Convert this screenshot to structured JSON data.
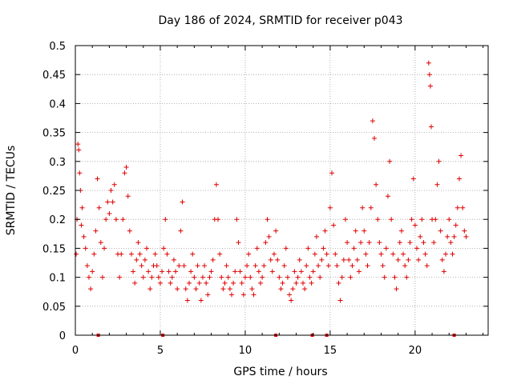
{
  "chart_data": {
    "type": "scatter",
    "title": "Day 186 of 2024, SRMTID for receiver p043",
    "xlabel": "GPS time / hours",
    "ylabel": "SRMTID / TECUs",
    "xlim": [
      0,
      24.3
    ],
    "ylim": [
      0,
      0.5
    ],
    "x_ticks": [
      0,
      5,
      10,
      15,
      20
    ],
    "y_ticks": [
      0,
      0.05,
      0.1,
      0.15,
      0.2,
      0.25,
      0.3,
      0.35,
      0.4,
      0.45,
      0.5
    ],
    "x_tick_labels": [
      "0",
      "5",
      "10",
      "15",
      "20"
    ],
    "y_tick_labels": [
      "0",
      "0.05",
      "0.1",
      "0.15",
      "0.2",
      "0.25",
      "0.3",
      "0.35",
      "0.4",
      "0.45",
      "0.5"
    ],
    "grid": true,
    "marker": "+",
    "marker_color": "#e00000",
    "series": [
      {
        "name": "SRMTID",
        "points": [
          [
            0.05,
            0.14
          ],
          [
            0.1,
            0.2
          ],
          [
            0.15,
            0.33
          ],
          [
            0.2,
            0.32
          ],
          [
            0.25,
            0.28
          ],
          [
            0.3,
            0.25
          ],
          [
            0.35,
            0.19
          ],
          [
            0.4,
            0.22
          ],
          [
            0.5,
            0.17
          ],
          [
            0.6,
            0.15
          ],
          [
            0.7,
            0.12
          ],
          [
            0.8,
            0.1
          ],
          [
            0.9,
            0.08
          ],
          [
            1.0,
            0.11
          ],
          [
            1.1,
            0.14
          ],
          [
            1.2,
            0.18
          ],
          [
            1.3,
            0.27
          ],
          [
            1.4,
            0.22
          ],
          [
            1.5,
            0.16
          ],
          [
            1.6,
            0.1
          ],
          [
            1.7,
            0.15
          ],
          [
            1.8,
            0.2
          ],
          [
            1.9,
            0.23
          ],
          [
            2.0,
            0.21
          ],
          [
            2.1,
            0.25
          ],
          [
            2.2,
            0.23
          ],
          [
            2.3,
            0.26
          ],
          [
            2.4,
            0.2
          ],
          [
            2.5,
            0.14
          ],
          [
            2.6,
            0.1
          ],
          [
            2.7,
            0.14
          ],
          [
            2.8,
            0.2
          ],
          [
            2.9,
            0.28
          ],
          [
            3.0,
            0.29
          ],
          [
            3.1,
            0.24
          ],
          [
            3.2,
            0.18
          ],
          [
            3.3,
            0.14
          ],
          [
            3.4,
            0.11
          ],
          [
            3.5,
            0.09
          ],
          [
            3.6,
            0.13
          ],
          [
            3.7,
            0.16
          ],
          [
            3.8,
            0.14
          ],
          [
            3.9,
            0.12
          ],
          [
            4.0,
            0.1
          ],
          [
            4.1,
            0.13
          ],
          [
            4.2,
            0.15
          ],
          [
            4.3,
            0.11
          ],
          [
            4.4,
            0.08
          ],
          [
            4.5,
            0.1
          ],
          [
            4.6,
            0.12
          ],
          [
            4.7,
            0.14
          ],
          [
            4.8,
            0.12
          ],
          [
            4.9,
            0.1
          ],
          [
            5.0,
            0.09
          ],
          [
            5.1,
            0.11
          ],
          [
            5.2,
            0.15
          ],
          [
            5.3,
            0.2
          ],
          [
            5.4,
            0.14
          ],
          [
            5.5,
            0.11
          ],
          [
            5.6,
            0.09
          ],
          [
            5.7,
            0.1
          ],
          [
            5.8,
            0.13
          ],
          [
            5.9,
            0.11
          ],
          [
            6.0,
            0.08
          ],
          [
            6.1,
            0.12
          ],
          [
            6.2,
            0.18
          ],
          [
            6.3,
            0.23
          ],
          [
            6.4,
            0.12
          ],
          [
            6.5,
            0.08
          ],
          [
            6.6,
            0.06
          ],
          [
            6.7,
            0.09
          ],
          [
            6.8,
            0.11
          ],
          [
            6.9,
            0.14
          ],
          [
            7.0,
            0.1
          ],
          [
            7.1,
            0.08
          ],
          [
            7.2,
            0.12
          ],
          [
            7.3,
            0.09
          ],
          [
            7.4,
            0.06
          ],
          [
            7.5,
            0.1
          ],
          [
            7.6,
            0.12
          ],
          [
            7.7,
            0.09
          ],
          [
            7.8,
            0.07
          ],
          [
            7.9,
            0.1
          ],
          [
            8.0,
            0.11
          ],
          [
            8.1,
            0.13
          ],
          [
            8.2,
            0.2
          ],
          [
            8.3,
            0.26
          ],
          [
            8.4,
            0.2
          ],
          [
            8.5,
            0.14
          ],
          [
            8.6,
            0.1
          ],
          [
            8.7,
            0.08
          ],
          [
            8.8,
            0.09
          ],
          [
            8.9,
            0.12
          ],
          [
            9.0,
            0.1
          ],
          [
            9.1,
            0.08
          ],
          [
            9.2,
            0.07
          ],
          [
            9.3,
            0.09
          ],
          [
            9.4,
            0.11
          ],
          [
            9.5,
            0.2
          ],
          [
            9.6,
            0.16
          ],
          [
            9.7,
            0.11
          ],
          [
            9.8,
            0.09
          ],
          [
            9.9,
            0.07
          ],
          [
            10.0,
            0.1
          ],
          [
            10.1,
            0.12
          ],
          [
            10.2,
            0.14
          ],
          [
            10.3,
            0.1
          ],
          [
            10.4,
            0.08
          ],
          [
            10.5,
            0.07
          ],
          [
            10.6,
            0.12
          ],
          [
            10.7,
            0.15
          ],
          [
            10.8,
            0.11
          ],
          [
            10.9,
            0.09
          ],
          [
            11.0,
            0.1
          ],
          [
            11.1,
            0.12
          ],
          [
            11.2,
            0.16
          ],
          [
            11.3,
            0.2
          ],
          [
            11.4,
            0.17
          ],
          [
            11.5,
            0.13
          ],
          [
            11.6,
            0.11
          ],
          [
            11.7,
            0.14
          ],
          [
            11.8,
            0.18
          ],
          [
            11.9,
            0.13
          ],
          [
            12.0,
            0.1
          ],
          [
            12.1,
            0.08
          ],
          [
            12.2,
            0.09
          ],
          [
            12.3,
            0.12
          ],
          [
            12.4,
            0.15
          ],
          [
            12.5,
            0.1
          ],
          [
            12.6,
            0.07
          ],
          [
            12.7,
            0.06
          ],
          [
            12.8,
            0.08
          ],
          [
            12.9,
            0.11
          ],
          [
            13.0,
            0.09
          ],
          [
            13.1,
            0.1
          ],
          [
            13.2,
            0.13
          ],
          [
            13.3,
            0.11
          ],
          [
            13.4,
            0.09
          ],
          [
            13.5,
            0.08
          ],
          [
            13.6,
            0.12
          ],
          [
            13.7,
            0.15
          ],
          [
            13.8,
            0.1
          ],
          [
            13.9,
            0.09
          ],
          [
            14.0,
            0.11
          ],
          [
            14.1,
            0.14
          ],
          [
            14.2,
            0.17
          ],
          [
            14.3,
            0.12
          ],
          [
            14.4,
            0.1
          ],
          [
            14.5,
            0.13
          ],
          [
            14.6,
            0.15
          ],
          [
            14.7,
            0.18
          ],
          [
            14.8,
            0.14
          ],
          [
            14.9,
            0.12
          ],
          [
            15.0,
            0.22
          ],
          [
            15.1,
            0.28
          ],
          [
            15.2,
            0.19
          ],
          [
            15.3,
            0.14
          ],
          [
            15.4,
            0.12
          ],
          [
            15.5,
            0.09
          ],
          [
            15.6,
            0.06
          ],
          [
            15.7,
            0.1
          ],
          [
            15.8,
            0.13
          ],
          [
            15.9,
            0.2
          ],
          [
            16.0,
            0.16
          ],
          [
            16.1,
            0.13
          ],
          [
            16.2,
            0.1
          ],
          [
            16.3,
            0.12
          ],
          [
            16.4,
            0.15
          ],
          [
            16.5,
            0.18
          ],
          [
            16.6,
            0.13
          ],
          [
            16.7,
            0.11
          ],
          [
            16.8,
            0.16
          ],
          [
            16.9,
            0.22
          ],
          [
            17.0,
            0.18
          ],
          [
            17.1,
            0.14
          ],
          [
            17.2,
            0.12
          ],
          [
            17.3,
            0.16
          ],
          [
            17.4,
            0.22
          ],
          [
            17.5,
            0.37
          ],
          [
            17.6,
            0.34
          ],
          [
            17.7,
            0.26
          ],
          [
            17.8,
            0.2
          ],
          [
            17.9,
            0.16
          ],
          [
            18.0,
            0.14
          ],
          [
            18.1,
            0.12
          ],
          [
            18.2,
            0.1
          ],
          [
            18.3,
            0.15
          ],
          [
            18.4,
            0.24
          ],
          [
            18.5,
            0.3
          ],
          [
            18.6,
            0.2
          ],
          [
            18.7,
            0.14
          ],
          [
            18.8,
            0.1
          ],
          [
            18.9,
            0.08
          ],
          [
            19.0,
            0.13
          ],
          [
            19.1,
            0.16
          ],
          [
            19.2,
            0.18
          ],
          [
            19.3,
            0.14
          ],
          [
            19.4,
            0.12
          ],
          [
            19.5,
            0.1
          ],
          [
            19.6,
            0.13
          ],
          [
            19.7,
            0.16
          ],
          [
            19.8,
            0.2
          ],
          [
            19.9,
            0.27
          ],
          [
            20.0,
            0.19
          ],
          [
            20.1,
            0.15
          ],
          [
            20.2,
            0.13
          ],
          [
            20.3,
            0.17
          ],
          [
            20.4,
            0.2
          ],
          [
            20.5,
            0.16
          ],
          [
            20.6,
            0.14
          ],
          [
            20.7,
            0.12
          ],
          [
            20.8,
            0.47
          ],
          [
            20.85,
            0.45
          ],
          [
            20.9,
            0.43
          ],
          [
            20.95,
            0.36
          ],
          [
            21.0,
            0.2
          ],
          [
            21.1,
            0.16
          ],
          [
            21.2,
            0.2
          ],
          [
            21.3,
            0.26
          ],
          [
            21.4,
            0.3
          ],
          [
            21.5,
            0.18
          ],
          [
            21.6,
            0.13
          ],
          [
            21.7,
            0.11
          ],
          [
            21.8,
            0.14
          ],
          [
            21.9,
            0.17
          ],
          [
            22.0,
            0.2
          ],
          [
            22.1,
            0.16
          ],
          [
            22.2,
            0.14
          ],
          [
            22.3,
            0.17
          ],
          [
            22.4,
            0.19
          ],
          [
            22.5,
            0.22
          ],
          [
            22.6,
            0.27
          ],
          [
            22.7,
            0.31
          ],
          [
            22.8,
            0.22
          ],
          [
            22.9,
            0.18
          ],
          [
            23.0,
            0.17
          ]
        ]
      }
    ],
    "gap_marks": [
      1.35,
      5.15,
      11.8,
      13.95,
      14.8,
      22.3
    ]
  }
}
